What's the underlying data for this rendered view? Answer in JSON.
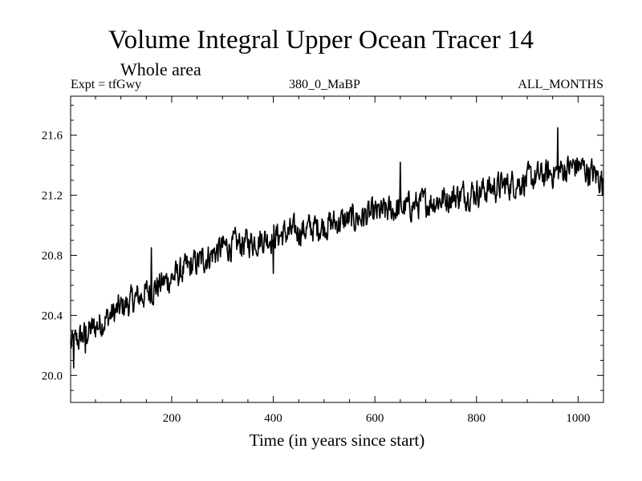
{
  "chart_data": {
    "type": "line",
    "title": "Volume Integral Upper Ocean Tracer 14",
    "subtitle": "Whole area",
    "expt_label": "Expt = tfGwy",
    "run_label": "380_0_MaBP",
    "months_label": "ALL_MONTHS",
    "xlabel": "Time (in years since start)",
    "ylabel": "",
    "xlim": [
      1,
      1050
    ],
    "ylim": [
      19.82,
      21.86
    ],
    "x_ticks": [
      200,
      400,
      600,
      800,
      1000
    ],
    "y_ticks": [
      20.0,
      20.4,
      20.8,
      21.2,
      21.6
    ],
    "y_tick_labels": [
      "20.0",
      "20.4",
      "20.8",
      "21.2",
      "21.6"
    ],
    "x_tick_labels": [
      "200",
      "400",
      "600",
      "800",
      "1000"
    ],
    "series": [
      {
        "name": "Tracer 14",
        "color": "#000000",
        "trend": [
          [
            1,
            20.2
          ],
          [
            100,
            20.45
          ],
          [
            300,
            20.85
          ],
          [
            500,
            21.0
          ],
          [
            700,
            21.15
          ],
          [
            900,
            21.3
          ],
          [
            1000,
            21.4
          ],
          [
            1050,
            21.3
          ]
        ],
        "noise_amplitude": 0.09,
        "samples": 1050,
        "notable_points": [
          [
            7,
            20.05
          ],
          [
            30,
            20.15
          ],
          [
            160,
            20.85
          ],
          [
            400,
            20.68
          ],
          [
            650,
            21.42
          ],
          [
            960,
            21.65
          ],
          [
            1048,
            21.2
          ]
        ]
      }
    ]
  }
}
